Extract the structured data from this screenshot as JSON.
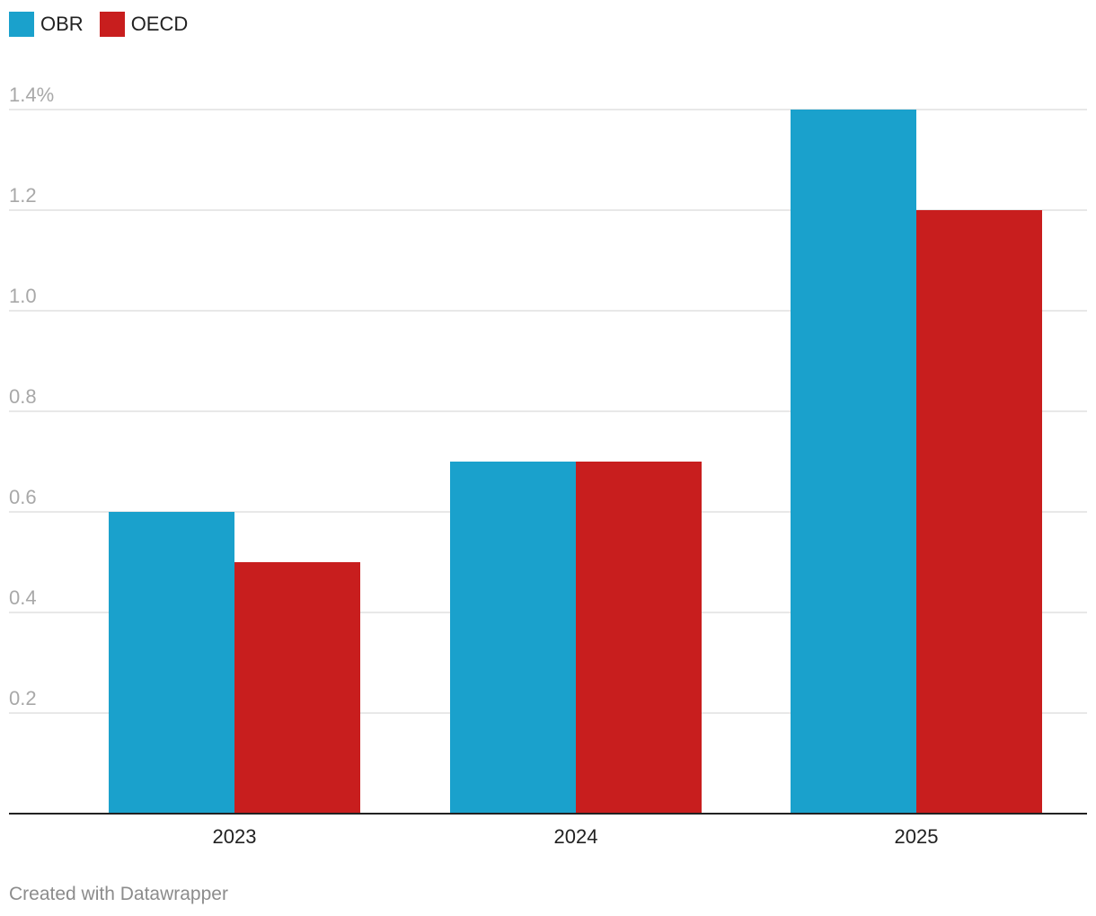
{
  "chart_data": {
    "type": "bar",
    "categories": [
      "2023",
      "2024",
      "2025"
    ],
    "series": [
      {
        "name": "OBR",
        "color": "#1aa1cc",
        "values": [
          0.6,
          0.7,
          1.4
        ]
      },
      {
        "name": "OECD",
        "color": "#c81e1e",
        "values": [
          0.5,
          0.7,
          1.2
        ]
      }
    ],
    "yticks": [
      {
        "value": 0.2,
        "label": "0.2"
      },
      {
        "value": 0.4,
        "label": "0.4"
      },
      {
        "value": 0.6,
        "label": "0.6"
      },
      {
        "value": 0.8,
        "label": "0.8"
      },
      {
        "value": 1.0,
        "label": "1.0"
      },
      {
        "value": 1.2,
        "label": "1.2"
      },
      {
        "value": 1.4,
        "label": "1.4%"
      }
    ],
    "ylim": [
      0,
      1.4
    ],
    "grid": true,
    "legend_position": "top-left"
  },
  "legend": [
    {
      "label": "OBR",
      "color": "#1aa1cc"
    },
    {
      "label": "OECD",
      "color": "#c81e1e"
    }
  ],
  "footer": {
    "credit": "Created with Datawrapper"
  }
}
